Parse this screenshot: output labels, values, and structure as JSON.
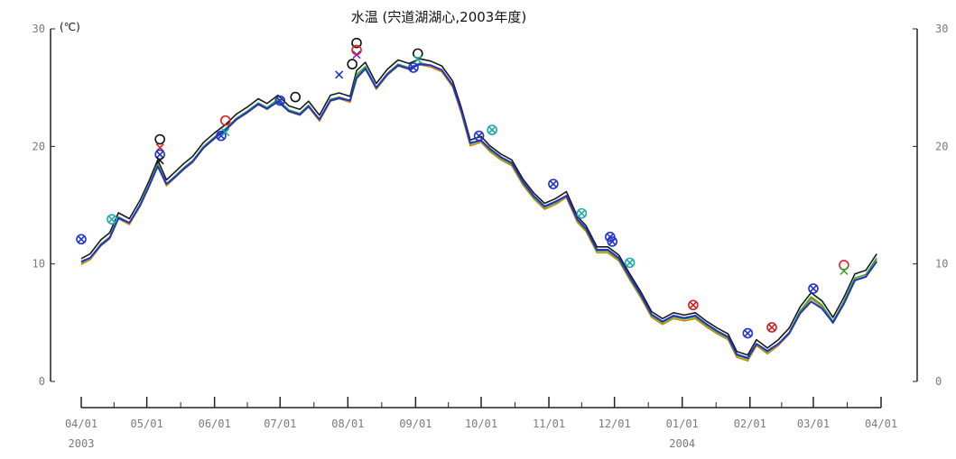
{
  "chart_data": {
    "type": "line",
    "title": "水温 (宍道湖湖心,2003年度)",
    "ylabel": "(℃)",
    "xlabel": "",
    "ylim": [
      0,
      30
    ],
    "y_ticks": [
      "0",
      "10",
      "20",
      "30"
    ],
    "right_y_ticks": [
      "0",
      "10",
      "20",
      "30"
    ],
    "x_domain": [
      "2003-04-01",
      "2004-04-01"
    ],
    "x_ticks": [
      {
        "date": "2003-04-01",
        "label": "04/01"
      },
      {
        "date": "2003-05-01",
        "label": "05/01"
      },
      {
        "date": "2003-06-01",
        "label": "06/01"
      },
      {
        "date": "2003-07-01",
        "label": "07/01"
      },
      {
        "date": "2003-08-01",
        "label": "08/01"
      },
      {
        "date": "2003-09-01",
        "label": "09/01"
      },
      {
        "date": "2003-10-01",
        "label": "10/01"
      },
      {
        "date": "2003-11-01",
        "label": "11/01"
      },
      {
        "date": "2003-12-01",
        "label": "12/01"
      },
      {
        "date": "2004-01-01",
        "label": "01/01"
      },
      {
        "date": "2004-02-01",
        "label": "02/01"
      },
      {
        "date": "2004-03-01",
        "label": "03/01"
      },
      {
        "date": "2004-04-01",
        "label": "04/01"
      }
    ],
    "year_labels": [
      {
        "date": "2003-04-01",
        "label": "2003"
      },
      {
        "date": "2004-01-01",
        "label": "2004"
      }
    ],
    "grid": false,
    "series": [
      {
        "color": "#1a1a1a",
        "offset": 0.25,
        "x": [
          "2003-04-01",
          "2003-04-05",
          "2003-04-10",
          "2003-04-14",
          "2003-04-18",
          "2003-04-23",
          "2003-04-28",
          "2003-05-02",
          "2003-05-06",
          "2003-05-10",
          "2003-05-14",
          "2003-05-18",
          "2003-05-22",
          "2003-05-27",
          "2003-06-01",
          "2003-06-06",
          "2003-06-11",
          "2003-06-16",
          "2003-06-21",
          "2003-06-25",
          "2003-06-30",
          "2003-07-05",
          "2003-07-10",
          "2003-07-14",
          "2003-07-19",
          "2003-07-24",
          "2003-07-28",
          "2003-08-02",
          "2003-08-05",
          "2003-08-09",
          "2003-08-14",
          "2003-08-19",
          "2003-08-24",
          "2003-08-29",
          "2003-09-03",
          "2003-09-08",
          "2003-09-13",
          "2003-09-18",
          "2003-09-22",
          "2003-09-26",
          "2003-10-01",
          "2003-10-05",
          "2003-10-10",
          "2003-10-15",
          "2003-10-20",
          "2003-10-25",
          "2003-10-30",
          "2003-11-04",
          "2003-11-09",
          "2003-11-14",
          "2003-11-18",
          "2003-11-23",
          "2003-11-28",
          "2003-12-03",
          "2003-12-08",
          "2003-12-13",
          "2003-12-18",
          "2003-12-23",
          "2003-12-28",
          "2004-01-02",
          "2004-01-07",
          "2004-01-12",
          "2004-01-17",
          "2004-01-22",
          "2004-01-26",
          "2004-01-31",
          "2004-02-04",
          "2004-02-09",
          "2004-02-14",
          "2004-02-19",
          "2004-02-24",
          "2004-02-29",
          "2004-03-05",
          "2004-03-10",
          "2004-03-15",
          "2004-03-20",
          "2004-03-25",
          "2004-03-30"
        ],
        "values": [
          10.2,
          10.6,
          11.8,
          12.4,
          14.1,
          13.6,
          15.2,
          16.8,
          18.6,
          16.9,
          17.6,
          18.3,
          18.9,
          20.1,
          20.9,
          21.6,
          22.5,
          23.1,
          23.8,
          23.4,
          24.1,
          23.2,
          22.9,
          23.6,
          22.4,
          24.1,
          24.3,
          24.0,
          26.2,
          26.9,
          25.1,
          26.3,
          27.1,
          26.8,
          27.2,
          27.0,
          26.6,
          25.3,
          23.0,
          20.3,
          20.6,
          19.8,
          19.1,
          18.6,
          17.0,
          15.8,
          14.9,
          15.3,
          15.9,
          13.8,
          13.0,
          11.2,
          11.2,
          10.5,
          8.9,
          7.4,
          5.7,
          5.1,
          5.6,
          5.4,
          5.6,
          4.9,
          4.3,
          3.8,
          2.3,
          2.0,
          3.3,
          2.6,
          3.3,
          4.3,
          6.1,
          7.3,
          6.6,
          5.2,
          6.9,
          8.9,
          9.2,
          10.6
        ]
      },
      {
        "color": "#c98a00",
        "offset": -0.25,
        "x": [
          "2003-04-01",
          "2003-04-05",
          "2003-04-10",
          "2003-04-14",
          "2003-04-18",
          "2003-04-23",
          "2003-04-28",
          "2003-05-02",
          "2003-05-06",
          "2003-05-10",
          "2003-05-14",
          "2003-05-18",
          "2003-05-22",
          "2003-05-27",
          "2003-06-01",
          "2003-06-06",
          "2003-06-11",
          "2003-06-16",
          "2003-06-21",
          "2003-06-25",
          "2003-06-30",
          "2003-07-05",
          "2003-07-10",
          "2003-07-14",
          "2003-07-19",
          "2003-07-24",
          "2003-07-28",
          "2003-08-02",
          "2003-08-05",
          "2003-08-09",
          "2003-08-14",
          "2003-08-19",
          "2003-08-24",
          "2003-08-29",
          "2003-09-03",
          "2003-09-08",
          "2003-09-13",
          "2003-09-18",
          "2003-09-22",
          "2003-09-26",
          "2003-10-01",
          "2003-10-05",
          "2003-10-10",
          "2003-10-15",
          "2003-10-20",
          "2003-10-25",
          "2003-10-30",
          "2003-11-04",
          "2003-11-09",
          "2003-11-14",
          "2003-11-18",
          "2003-11-23",
          "2003-11-28",
          "2003-12-03",
          "2003-12-08",
          "2003-12-13",
          "2003-12-18",
          "2003-12-23",
          "2003-12-28",
          "2004-01-02",
          "2004-01-07",
          "2004-01-12",
          "2004-01-17",
          "2004-01-22",
          "2004-01-26",
          "2004-01-31",
          "2004-02-04",
          "2004-02-09",
          "2004-02-14",
          "2004-02-19",
          "2004-02-24",
          "2004-02-29",
          "2004-03-05",
          "2004-03-10",
          "2004-03-15",
          "2004-03-20",
          "2004-03-25",
          "2004-03-30"
        ],
        "values": [
          10.2,
          10.6,
          11.8,
          12.4,
          14.1,
          13.6,
          15.2,
          16.8,
          18.6,
          16.9,
          17.6,
          18.3,
          18.9,
          20.1,
          20.9,
          21.6,
          22.5,
          23.1,
          23.8,
          23.4,
          24.1,
          23.2,
          22.9,
          23.6,
          22.4,
          24.1,
          24.3,
          24.0,
          26.2,
          26.9,
          25.1,
          26.3,
          27.1,
          26.8,
          27.2,
          27.0,
          26.6,
          25.3,
          23.0,
          20.3,
          20.6,
          19.8,
          19.1,
          18.6,
          17.0,
          15.8,
          14.9,
          15.3,
          15.9,
          13.8,
          13.0,
          11.2,
          11.2,
          10.5,
          8.9,
          7.4,
          5.7,
          5.1,
          5.6,
          5.4,
          5.6,
          4.9,
          4.3,
          3.8,
          2.3,
          2.0,
          3.3,
          2.6,
          3.3,
          4.3,
          6.1,
          7.3,
          6.6,
          5.2,
          6.9,
          8.9,
          9.2,
          10.6
        ]
      },
      {
        "color": "#33aa33",
        "offset": -0.1,
        "x": [
          "2003-04-01",
          "2003-04-05",
          "2003-04-10",
          "2003-04-14",
          "2003-04-18",
          "2003-04-23",
          "2003-04-28",
          "2003-05-02",
          "2003-05-06",
          "2003-05-10",
          "2003-05-14",
          "2003-05-18",
          "2003-05-22",
          "2003-05-27",
          "2003-06-01",
          "2003-06-06",
          "2003-06-11",
          "2003-06-16",
          "2003-06-21",
          "2003-06-25",
          "2003-06-30",
          "2003-07-05",
          "2003-07-10",
          "2003-07-14",
          "2003-07-19",
          "2003-07-24",
          "2003-07-28",
          "2003-08-02",
          "2003-08-05",
          "2003-08-09",
          "2003-08-14",
          "2003-08-19",
          "2003-08-24",
          "2003-08-29",
          "2003-09-03",
          "2003-09-08",
          "2003-09-13",
          "2003-09-18",
          "2003-09-22",
          "2003-09-26",
          "2003-10-01",
          "2003-10-05",
          "2003-10-10",
          "2003-10-15",
          "2003-10-20",
          "2003-10-25",
          "2003-10-30",
          "2003-11-04",
          "2003-11-09",
          "2003-11-14",
          "2003-11-18",
          "2003-11-23",
          "2003-11-28",
          "2003-12-03",
          "2003-12-08",
          "2003-12-13",
          "2003-12-18",
          "2003-12-23",
          "2003-12-28",
          "2004-01-02",
          "2004-01-07",
          "2004-01-12",
          "2004-01-17",
          "2004-01-22",
          "2004-01-26",
          "2004-01-31",
          "2004-02-04",
          "2004-02-09",
          "2004-02-14",
          "2004-02-19",
          "2004-02-24",
          "2004-02-29",
          "2004-03-05",
          "2004-03-10",
          "2004-03-15",
          "2004-03-20",
          "2004-03-25",
          "2004-03-30"
        ],
        "values": [
          10.2,
          10.6,
          11.8,
          12.4,
          14.1,
          13.6,
          15.2,
          16.8,
          18.6,
          16.9,
          17.6,
          18.3,
          18.9,
          20.1,
          20.9,
          21.6,
          22.5,
          23.1,
          23.8,
          23.4,
          24.1,
          23.2,
          22.9,
          23.6,
          22.4,
          24.1,
          24.3,
          24.0,
          26.2,
          26.9,
          25.1,
          26.3,
          27.1,
          26.8,
          27.2,
          27.0,
          26.6,
          25.3,
          23.0,
          20.3,
          20.6,
          19.8,
          19.1,
          18.6,
          17.0,
          15.8,
          14.9,
          15.3,
          15.9,
          13.8,
          13.0,
          11.2,
          11.2,
          10.5,
          8.9,
          7.4,
          5.7,
          5.1,
          5.6,
          5.4,
          5.6,
          4.9,
          4.3,
          3.8,
          2.3,
          2.0,
          3.3,
          2.6,
          3.3,
          4.3,
          6.1,
          7.3,
          6.6,
          5.2,
          6.9,
          8.9,
          9.2,
          10.6
        ]
      },
      {
        "color": "#2233cc",
        "offset": 0.0,
        "x": [
          "2003-04-01",
          "2003-04-05",
          "2003-04-10",
          "2003-04-14",
          "2003-04-18",
          "2003-04-23",
          "2003-04-28",
          "2003-05-02",
          "2003-05-06",
          "2003-05-10",
          "2003-05-14",
          "2003-05-18",
          "2003-05-22",
          "2003-05-27",
          "2003-06-01",
          "2003-06-06",
          "2003-06-11",
          "2003-06-16",
          "2003-06-21",
          "2003-06-25",
          "2003-06-30",
          "2003-07-05",
          "2003-07-10",
          "2003-07-14",
          "2003-07-19",
          "2003-07-24",
          "2003-07-28",
          "2003-08-02",
          "2003-08-05",
          "2003-08-09",
          "2003-08-14",
          "2003-08-19",
          "2003-08-24",
          "2003-08-29",
          "2003-09-03",
          "2003-09-08",
          "2003-09-13",
          "2003-09-18",
          "2003-09-22",
          "2003-09-26",
          "2003-10-01",
          "2003-10-05",
          "2003-10-10",
          "2003-10-15",
          "2003-10-20",
          "2003-10-25",
          "2003-10-30",
          "2003-11-04",
          "2003-11-09",
          "2003-11-14",
          "2003-11-18",
          "2003-11-23",
          "2003-11-28",
          "2003-12-03",
          "2003-12-08",
          "2003-12-13",
          "2003-12-18",
          "2003-12-23",
          "2003-12-28",
          "2004-01-02",
          "2004-01-07",
          "2004-01-12",
          "2004-01-17",
          "2004-01-22",
          "2004-01-26",
          "2004-01-31",
          "2004-02-04",
          "2004-02-09",
          "2004-02-14",
          "2004-02-19",
          "2004-02-24",
          "2004-02-29",
          "2004-03-05",
          "2004-03-10",
          "2004-03-15",
          "2004-03-20",
          "2004-03-25",
          "2004-03-30"
        ],
        "values": [
          10.2,
          10.5,
          11.6,
          12.2,
          13.9,
          13.5,
          15.0,
          16.6,
          18.3,
          16.8,
          17.4,
          18.1,
          18.7,
          19.9,
          20.7,
          21.4,
          22.3,
          22.9,
          23.6,
          23.2,
          23.8,
          23.0,
          22.7,
          23.4,
          22.3,
          23.9,
          24.1,
          23.9,
          25.8,
          26.6,
          25.0,
          26.1,
          26.9,
          26.6,
          27.0,
          26.9,
          26.5,
          25.2,
          23.0,
          20.3,
          20.5,
          19.8,
          19.1,
          18.6,
          17.0,
          15.8,
          14.9,
          15.3,
          15.8,
          13.8,
          13.0,
          11.2,
          11.2,
          10.5,
          8.9,
          7.4,
          5.7,
          5.1,
          5.6,
          5.4,
          5.6,
          4.9,
          4.3,
          3.8,
          2.3,
          2.0,
          3.2,
          2.6,
          3.2,
          4.1,
          5.8,
          6.8,
          6.2,
          5.0,
          6.6,
          8.6,
          8.9,
          10.2
        ]
      }
    ],
    "markers": [
      {
        "date": "2003-04-01",
        "value": 12.1,
        "symbol": "circle-x",
        "color": "#2233cc"
      },
      {
        "date": "2003-04-15",
        "value": 13.8,
        "symbol": "circle-x",
        "color": "#22aaaa"
      },
      {
        "date": "2003-05-07",
        "value": 20.6,
        "symbol": "circle",
        "color": "#111111"
      },
      {
        "date": "2003-05-07",
        "value": 19.9,
        "symbol": "x",
        "color": "#dd2222"
      },
      {
        "date": "2003-05-07",
        "value": 19.3,
        "symbol": "circle-x",
        "color": "#2233cc"
      },
      {
        "date": "2003-05-07",
        "value": 18.8,
        "symbol": "x",
        "color": "#1a1a1a"
      },
      {
        "date": "2003-06-04",
        "value": 20.9,
        "symbol": "circle-x",
        "color": "#2233cc"
      },
      {
        "date": "2003-06-06",
        "value": 22.2,
        "symbol": "circle",
        "color": "#dd2222"
      },
      {
        "date": "2003-06-06",
        "value": 21.2,
        "symbol": "x",
        "color": "#22aaaa"
      },
      {
        "date": "2003-07-01",
        "value": 23.9,
        "symbol": "circle-x",
        "color": "#2233cc"
      },
      {
        "date": "2003-07-08",
        "value": 24.2,
        "symbol": "circle",
        "color": "#111111"
      },
      {
        "date": "2003-07-28",
        "value": 26.1,
        "symbol": "x",
        "color": "#2233cc"
      },
      {
        "date": "2003-08-05",
        "value": 28.8,
        "symbol": "circle",
        "color": "#111111"
      },
      {
        "date": "2003-08-05",
        "value": 28.2,
        "symbol": "circle",
        "color": "#dd2222"
      },
      {
        "date": "2003-08-05",
        "value": 27.8,
        "symbol": "x",
        "color": "#8822aa"
      },
      {
        "date": "2003-08-03",
        "value": 27.0,
        "symbol": "circle",
        "color": "#111111"
      },
      {
        "date": "2003-08-31",
        "value": 26.7,
        "symbol": "circle-x",
        "color": "#2233cc"
      },
      {
        "date": "2003-09-02",
        "value": 27.9,
        "symbol": "circle",
        "color": "#111111"
      },
      {
        "date": "2003-09-02",
        "value": 27.4,
        "symbol": "x",
        "color": "#22aaaa"
      },
      {
        "date": "2003-09-30",
        "value": 20.9,
        "symbol": "circle-x",
        "color": "#2233cc"
      },
      {
        "date": "2003-10-06",
        "value": 21.4,
        "symbol": "circle-x",
        "color": "#22aaaa"
      },
      {
        "date": "2003-11-03",
        "value": 16.8,
        "symbol": "circle-x",
        "color": "#2233cc"
      },
      {
        "date": "2003-11-16",
        "value": 14.3,
        "symbol": "circle-x",
        "color": "#22aaaa"
      },
      {
        "date": "2003-11-29",
        "value": 12.3,
        "symbol": "circle-x",
        "color": "#2233cc"
      },
      {
        "date": "2003-11-30",
        "value": 11.9,
        "symbol": "circle-x",
        "color": "#2233cc"
      },
      {
        "date": "2003-12-08",
        "value": 10.1,
        "symbol": "circle-x",
        "color": "#22aaaa"
      },
      {
        "date": "2004-01-06",
        "value": 6.5,
        "symbol": "circle-x",
        "color": "#cc2222"
      },
      {
        "date": "2004-01-31",
        "value": 4.1,
        "symbol": "circle-x",
        "color": "#2233cc"
      },
      {
        "date": "2004-02-11",
        "value": 4.6,
        "symbol": "circle-x",
        "color": "#cc2222"
      },
      {
        "date": "2004-03-01",
        "value": 7.9,
        "symbol": "circle-x",
        "color": "#2233cc"
      },
      {
        "date": "2004-03-15",
        "value": 9.9,
        "symbol": "circle",
        "color": "#dd2222"
      },
      {
        "date": "2004-03-15",
        "value": 9.4,
        "symbol": "x",
        "color": "#33aa33"
      }
    ]
  }
}
